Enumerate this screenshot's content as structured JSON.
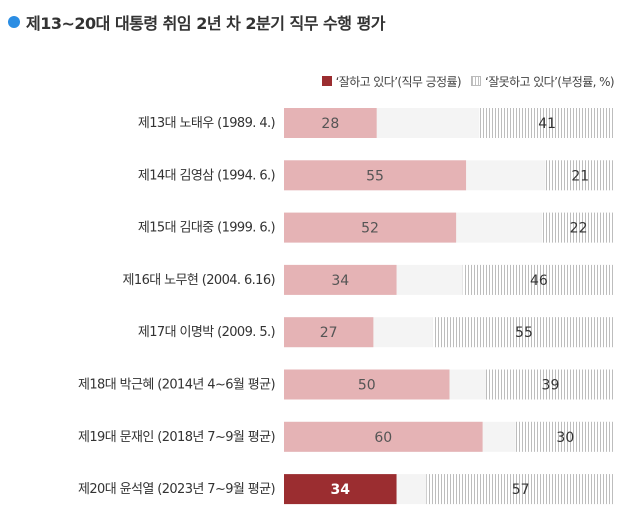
{
  "title": "제13~20대 대통령 취임 2년 차 2분기 직무 수행 평가",
  "legend": {
    "positive": "‘잘하고 있다’(직무 긍정률)",
    "negative": "‘잘못하고 있다’(부정률, %)"
  },
  "colors": {
    "positive": "#e5b3b5",
    "positive_highlight": "#9b2d30",
    "negative_stripe": "#bdbdbd",
    "track": "#f4f4f4"
  },
  "chart_data": {
    "type": "bar",
    "orientation": "horizontal",
    "stacked": true,
    "title": "제13~20대 대통령 취임 2년 차 2분기 직무 수행 평가",
    "categories": [
      "제13대 노태우 (1989. 4.)",
      "제14대 김영삼 (1994. 6.)",
      "제15대 김대중 (1999. 6.)",
      "제16대 노무현 (2004. 6.16)",
      "제17대 이명박 (2009. 5.)",
      "제18대 박근혜 (2014년 4~6월 평균)",
      "제19대 문재인 (2018년 7~9월 평균)",
      "제20대 윤석열 (2023년 7~9월 평균)"
    ],
    "series": [
      {
        "name": "‘잘하고 있다’(직무 긍정률)",
        "values": [
          28,
          55,
          52,
          34,
          27,
          50,
          60,
          34
        ]
      },
      {
        "name": "‘잘못하고 있다’(부정률, %)",
        "values": [
          41,
          21,
          22,
          46,
          55,
          39,
          30,
          57
        ]
      }
    ],
    "xlim": [
      0,
      100
    ],
    "highlight_index": 7
  }
}
